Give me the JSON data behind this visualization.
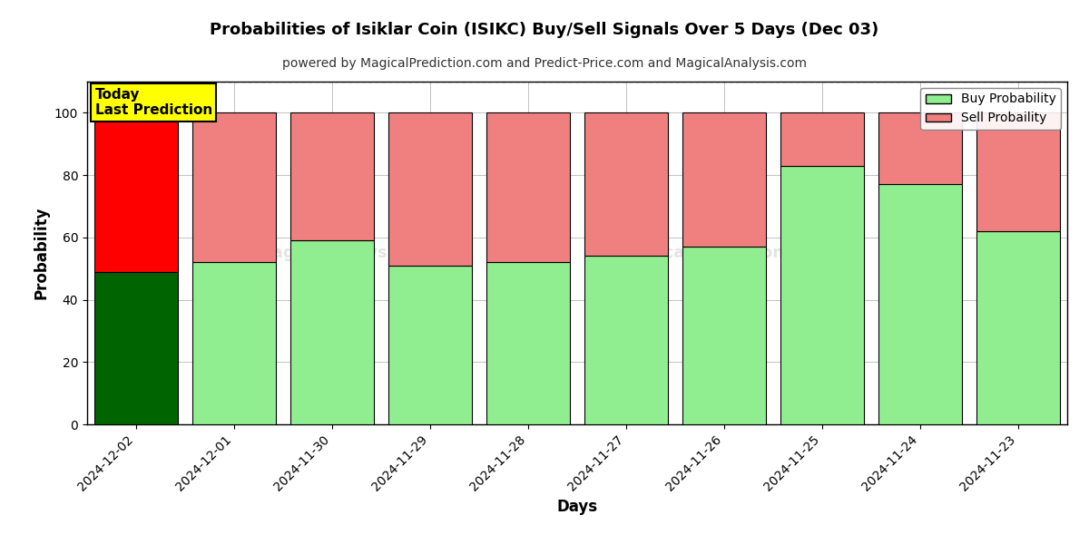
{
  "title": "Probabilities of Isiklar Coin (ISIKC) Buy/Sell Signals Over 5 Days (Dec 03)",
  "subtitle": "powered by MagicalPrediction.com and Predict-Price.com and MagicalAnalysis.com",
  "xlabel": "Days",
  "ylabel": "Probability",
  "categories": [
    "2024-12-02",
    "2024-12-01",
    "2024-11-30",
    "2024-11-29",
    "2024-11-28",
    "2024-11-27",
    "2024-11-26",
    "2024-11-25",
    "2024-11-24",
    "2024-11-23"
  ],
  "buy_values": [
    49,
    52,
    59,
    51,
    52,
    54,
    57,
    83,
    77,
    62
  ],
  "sell_values": [
    51,
    48,
    41,
    49,
    48,
    46,
    43,
    17,
    23,
    38
  ],
  "today_buy_color": "#006400",
  "today_sell_color": "#ff0000",
  "normal_buy_color": "#90EE90",
  "normal_sell_color": "#F08080",
  "bar_edge_color": "#000000",
  "ylim": [
    0,
    110
  ],
  "yticks": [
    0,
    20,
    40,
    60,
    80,
    100
  ],
  "dashed_line_y": 110,
  "legend_buy_label": "Buy Probability",
  "legend_sell_label": "Sell Probaility",
  "today_label_line1": "Today",
  "today_label_line2": "Last Prediction",
  "today_label_bg": "#ffff00",
  "background_color": "#ffffff",
  "grid_color": "#aaaaaa"
}
